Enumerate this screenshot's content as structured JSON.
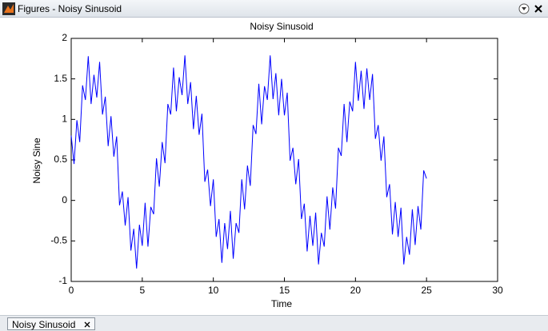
{
  "window": {
    "title": "Figures - Noisy Sinusoid",
    "tab": "Noisy Sinusoid"
  },
  "chart_data": {
    "type": "line",
    "title": "Noisy Sinusoid",
    "x_label": "Time",
    "y_label": "Noisy Sine",
    "color": "#0000ff",
    "x": [
      0,
      0.2,
      0.4,
      0.6,
      0.8,
      1,
      1.2,
      1.4,
      1.6,
      1.8,
      2,
      2.2,
      2.4,
      2.6,
      2.8,
      3,
      3.2,
      3.4,
      3.6,
      3.8,
      4,
      4.2,
      4.4,
      4.6,
      4.8,
      5,
      5.2,
      5.4,
      5.6,
      5.8,
      6,
      6.2,
      6.4,
      6.6,
      6.8,
      7,
      7.2,
      7.4,
      7.6,
      7.8,
      8,
      8.2,
      8.4,
      8.6,
      8.8,
      9,
      9.2,
      9.4,
      9.6,
      9.8,
      10,
      10.2,
      10.4,
      10.6,
      10.8,
      11,
      11.2,
      11.4,
      11.6,
      11.8,
      12,
      12.2,
      12.4,
      12.6,
      12.8,
      13,
      13.2,
      13.4,
      13.6,
      13.8,
      14,
      14.2,
      14.4,
      14.6,
      14.8,
      15,
      15.2,
      15.4,
      15.6,
      15.8,
      16,
      16.2,
      16.4,
      16.6,
      16.8,
      17,
      17.2,
      17.4,
      17.6,
      17.8,
      18,
      18.2,
      18.4,
      18.6,
      18.8,
      19,
      19.2,
      19.4,
      19.6,
      19.8,
      20,
      20.2,
      20.4,
      20.6,
      20.8,
      21,
      21.2,
      21.4,
      21.6,
      21.8,
      22,
      22.2,
      22.4,
      22.6,
      22.8,
      23,
      23.2,
      23.4,
      23.6,
      23.8,
      24,
      24.2,
      24.4,
      24.6,
      24.8,
      25
    ],
    "values": [
      0.8,
      0.45,
      0.99,
      0.72,
      1.42,
      1.24,
      1.78,
      1.19,
      1.55,
      1.27,
      1.71,
      1.06,
      1.28,
      0.67,
      1.04,
      0.54,
      0.79,
      -0.06,
      0.11,
      -0.31,
      0.04,
      -0.62,
      -0.35,
      -0.84,
      -0.3,
      -0.56,
      -0.03,
      -0.57,
      -0.08,
      -0.17,
      0.52,
      0.17,
      0.72,
      0.46,
      1.19,
      1.06,
      1.64,
      1.1,
      1.52,
      1.3,
      1.79,
      1.19,
      1.46,
      0.88,
      1.29,
      0.81,
      1.07,
      0.23,
      0.38,
      -0.07,
      0.26,
      -0.45,
      -0.23,
      -0.77,
      -0.28,
      -0.6,
      -0.13,
      -0.72,
      -0.28,
      -0.4,
      0.26,
      -0.11,
      0.43,
      0.18,
      0.93,
      0.82,
      1.44,
      0.94,
      1.41,
      1.24,
      1.79,
      1.25,
      1.57,
      1.05,
      1.5,
      1.05,
      1.33,
      0.49,
      0.65,
      0.2,
      0.51,
      -0.23,
      -0.04,
      -0.63,
      -0.19,
      -0.56,
      -0.15,
      -0.79,
      -0.4,
      -0.57,
      0.05,
      -0.36,
      0.16,
      -0.1,
      0.65,
      0.55,
      1.19,
      0.72,
      1.22,
      1.1,
      1.71,
      1.23,
      1.6,
      1.13,
      1.63,
      1.24,
      1.56,
      0.76,
      0.93,
      0.49,
      0.79,
      0.04,
      0.2,
      -0.42,
      -0.02,
      -0.45,
      -0.09,
      -0.79,
      -0.45,
      -0.67,
      -0.11,
      -0.55,
      -0.07,
      -0.36,
      0.37,
      0.27
    ],
    "xlim": [
      0,
      30
    ],
    "xticks": [
      0,
      5,
      10,
      15,
      20,
      25,
      30
    ],
    "ylim": [
      -1,
      2
    ],
    "yticks": [
      -1,
      -0.5,
      0,
      0.5,
      1,
      1.5,
      2
    ],
    "grid": false
  }
}
